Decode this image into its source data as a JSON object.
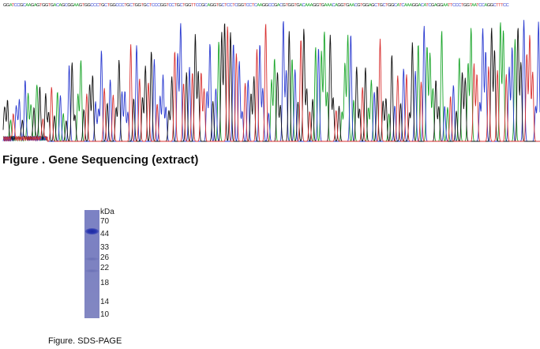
{
  "sequencing": {
    "sequence": "GGATCCGCAAGAGTGGTGACAGCGGAAGTGGCCCTGCTGGCCCTGCTGGTGCTCCCGGTCCTGCTGGTTCCGCAGGTGCTCCTCGGTCCTCAAGGCCGACGTGGTGACAAAGGTGAAACAGGTGAACGTGGAGCTGCTGGCATCAAAGGACATCGAGGAATTCCCTGGTAATCCAGGCTTTCC",
    "colors": {
      "A": "#1aa52a",
      "C": "#2a3ad0",
      "G": "#111111",
      "T": "#d83030"
    },
    "title": "Figure . Gene Sequencing (extract)"
  },
  "gel": {
    "unit": "kDa",
    "markers": [
      "70",
      "44",
      "33",
      "26",
      "22",
      "18",
      "14",
      "10"
    ],
    "band_color": "#2433a8",
    "lane_color": "#7c82c4",
    "caption": "Figure. SDS-PAGE"
  }
}
